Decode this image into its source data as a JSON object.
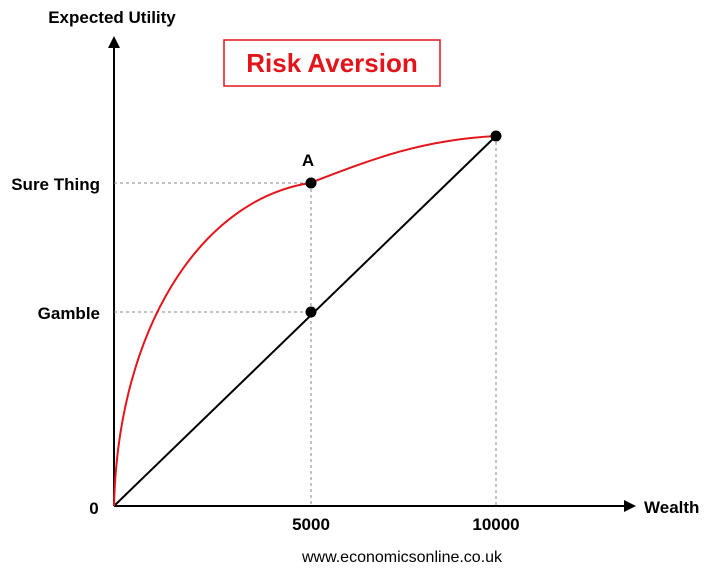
{
  "title": "Risk Aversion",
  "axes": {
    "y_label": "Expected Utility",
    "x_label": "Wealth",
    "origin": "0"
  },
  "ticks": {
    "x": [
      "5000",
      "10000"
    ],
    "y": [
      "Sure Thing",
      "Gamble"
    ]
  },
  "annotations": {
    "point_a": "A"
  },
  "footer": "www.economicsonline.co.uk",
  "colors": {
    "utility_curve": "#e3151a",
    "linear_line": "#000000",
    "title_border": "#e3151a"
  }
}
